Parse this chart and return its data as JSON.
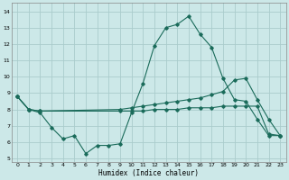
{
  "xlabel": "Humidex (Indice chaleur)",
  "bg_color": "#cce8e8",
  "line_color": "#1a6b5a",
  "grid_color": "#aacccc",
  "xlim": [
    -0.5,
    23.5
  ],
  "ylim": [
    4.8,
    14.5
  ],
  "xticks": [
    0,
    1,
    2,
    3,
    4,
    5,
    6,
    7,
    8,
    9,
    10,
    11,
    12,
    13,
    14,
    15,
    16,
    17,
    18,
    19,
    20,
    21,
    22,
    23
  ],
  "yticks": [
    5,
    6,
    7,
    8,
    9,
    10,
    11,
    12,
    13,
    14
  ],
  "series1_x": [
    0,
    1,
    2,
    3,
    4,
    5,
    6,
    7,
    8,
    9,
    10,
    11,
    12,
    13,
    14,
    15,
    16,
    17,
    18,
    19,
    20,
    21,
    22,
    23
  ],
  "series1_y": [
    8.8,
    8.0,
    7.8,
    6.9,
    6.2,
    6.4,
    5.3,
    5.8,
    5.8,
    5.9,
    7.8,
    9.6,
    11.9,
    13.0,
    13.2,
    13.7,
    12.6,
    11.8,
    9.9,
    8.6,
    8.5,
    7.4,
    6.4,
    6.4
  ],
  "series2_x": [
    0,
    1,
    2,
    9,
    10,
    11,
    12,
    13,
    14,
    15,
    16,
    17,
    18,
    19,
    20,
    21,
    22,
    23
  ],
  "series2_y": [
    8.8,
    8.0,
    7.9,
    8.0,
    8.1,
    8.2,
    8.3,
    8.4,
    8.5,
    8.6,
    8.7,
    8.9,
    9.1,
    9.8,
    9.9,
    8.6,
    7.4,
    6.4
  ],
  "series3_x": [
    0,
    1,
    2,
    9,
    10,
    11,
    12,
    13,
    14,
    15,
    16,
    17,
    18,
    19,
    20,
    21,
    22,
    23
  ],
  "series3_y": [
    8.8,
    8.0,
    7.9,
    7.9,
    7.9,
    7.9,
    8.0,
    8.0,
    8.0,
    8.1,
    8.1,
    8.1,
    8.2,
    8.2,
    8.2,
    8.2,
    6.5,
    6.4
  ]
}
